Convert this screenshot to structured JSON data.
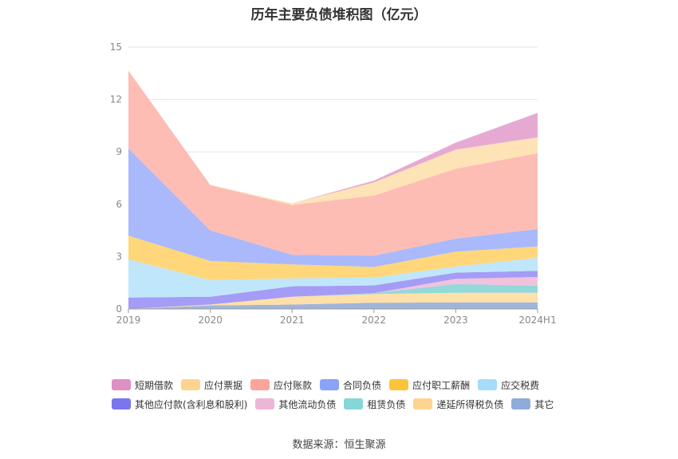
{
  "chart_data": {
    "type": "area",
    "title": "历年主要负债堆积图（亿元）",
    "categories": [
      "2019",
      "2020",
      "2021",
      "2022",
      "2023",
      "2024H1"
    ],
    "ylim": [
      0,
      15
    ],
    "yticks": [
      0,
      3,
      6,
      9,
      12,
      15
    ],
    "grid": true,
    "legend_position": "bottom",
    "stacked": true,
    "series": [
      {
        "name": "其它",
        "color": "#9fb5db",
        "values": [
          0,
          0.2,
          0.25,
          0.35,
          0.38,
          0.38
        ]
      },
      {
        "name": "递延所得税负债",
        "color": "#ffe0a8",
        "values": [
          0,
          0.05,
          0.45,
          0.5,
          0.55,
          0.55
        ]
      },
      {
        "name": "租赁负债",
        "color": "#93d9d9",
        "values": [
          0,
          0,
          0,
          0.05,
          0.5,
          0.4
        ]
      },
      {
        "name": "其他流动负债",
        "color": "#f1c2dd",
        "values": [
          0,
          0,
          0,
          0,
          0.3,
          0.5
        ]
      },
      {
        "name": "其他应付款(含利息和股利)",
        "color": "#a59cf5",
        "values": [
          0.65,
          0.45,
          0.6,
          0.45,
          0.35,
          0.35
        ]
      },
      {
        "name": "应交税费",
        "color": "#bfe6fb",
        "values": [
          2.2,
          0.95,
          0.45,
          0.45,
          0.35,
          0.75
        ]
      },
      {
        "name": "应付职工薪酬",
        "color": "#ffd77a",
        "values": [
          1.35,
          1.1,
          0.8,
          0.6,
          0.85,
          0.65
        ]
      },
      {
        "name": "合同负债",
        "color": "#a9b9fb",
        "values": [
          5.0,
          1.75,
          0.55,
          0.65,
          0.75,
          1.0
        ]
      },
      {
        "name": "应付账款",
        "color": "#fdbdb4",
        "values": [
          4.45,
          2.6,
          2.85,
          3.45,
          4.0,
          4.35
        ]
      },
      {
        "name": "应付票据",
        "color": "#fde3b6",
        "values": [
          0,
          0,
          0.1,
          0.75,
          1.1,
          0.9
        ]
      },
      {
        "name": "短期借款",
        "color": "#e6aad2",
        "values": [
          0,
          0,
          0,
          0.1,
          0.4,
          1.4
        ]
      }
    ]
  },
  "legend": {
    "row1": [
      {
        "label": "短期借款",
        "color": "#de8fc4"
      },
      {
        "label": "应付票据",
        "color": "#fdd48f"
      },
      {
        "label": "应付账款",
        "color": "#fba59a"
      },
      {
        "label": "合同负债",
        "color": "#8aa2f8"
      },
      {
        "label": "应付职工薪酬",
        "color": "#fcc43c"
      },
      {
        "label": "应交税费",
        "color": "#a6dcf8"
      }
    ],
    "row2": [
      {
        "label": "其他应付款(含利息和股利)",
        "color": "#7b75ee"
      },
      {
        "label": "其他流动负债",
        "color": "#ecb6d8"
      },
      {
        "label": "租赁负债",
        "color": "#85d6d6"
      },
      {
        "label": "递延所得税负债",
        "color": "#fdd490"
      },
      {
        "label": "其它",
        "color": "#8eabd9"
      }
    ]
  },
  "source": "数据来源：恒生聚源"
}
